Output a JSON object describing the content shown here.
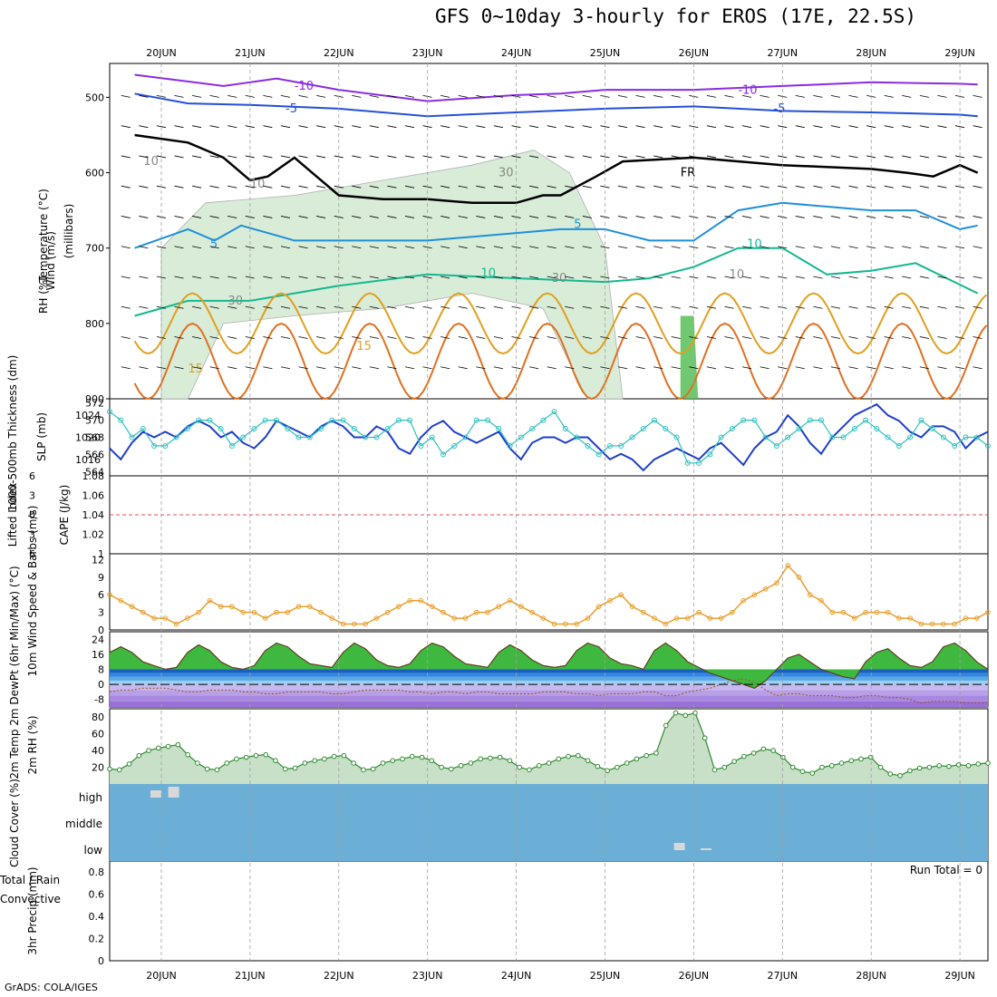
{
  "title": "GFS 0~10day 3-hourly for EROS (17E, 22.5S)",
  "footer": "GrADS: COLA/IGES",
  "days": [
    "20JUN",
    "21JUN",
    "22JUN",
    "23JUN",
    "24JUN",
    "25JUN",
    "26JUN",
    "27JUN",
    "28JUN",
    "29JUN"
  ],
  "colors": {
    "grid": "#a0a0a0",
    "ocean": "#6baed6",
    "rh_fill": "#4cbb4c",
    "temp_warm": "#3fb83f",
    "temp_cold": "#9b7fe0",
    "rh_line": "#2e8b2e",
    "wind_line": "#e8a030",
    "thick_line": "#30c0c0",
    "slp_line": "#1c3fc8"
  },
  "chart_data": [
    {
      "type": "contour",
      "panel": "upper-air",
      "ylabel_parts": [
        "Wind (m/s)",
        "Temperature (°C)",
        "RH (%)"
      ],
      "ylabel_units": "(millibars)",
      "y_ticks": [
        500,
        600,
        700,
        800,
        900
      ],
      "ylim": [
        455,
        900
      ],
      "contour_labels": [
        "-10",
        "-10",
        "-5",
        "-5",
        "10",
        "FR",
        "30",
        "5",
        "5",
        "10",
        "10",
        "30",
        "10",
        "15",
        "15",
        "30",
        "10"
      ],
      "isotherms": [
        {
          "name": "-10",
          "x": [
            -0.3,
            0.7,
            1.3,
            2.0,
            3.0,
            4.0,
            4.5,
            5.0,
            6.0,
            7.0,
            8.0,
            9.0,
            9.2
          ],
          "y": [
            470,
            485,
            475,
            490,
            505,
            497,
            495,
            490,
            490,
            485,
            480,
            482,
            483
          ]
        },
        {
          "name": "-5",
          "x": [
            -0.3,
            0.3,
            1.0,
            2.0,
            3.0,
            4.0,
            5.0,
            6.0,
            7.0,
            8.0,
            9.0,
            9.2
          ],
          "y": [
            495,
            508,
            510,
            515,
            525,
            520,
            515,
            512,
            518,
            520,
            523,
            525
          ]
        },
        {
          "name": "FR",
          "x": [
            -0.3,
            0.3,
            0.7,
            1.0,
            1.2,
            1.5,
            1.7,
            2.0,
            2.5,
            3.0,
            3.5,
            4.0,
            4.3,
            4.5,
            4.9,
            5.2,
            6.0,
            7.0,
            8.0,
            8.4,
            8.7,
            9.0,
            9.2
          ],
          "y": [
            550,
            560,
            580,
            610,
            605,
            580,
            600,
            630,
            635,
            635,
            640,
            640,
            630,
            630,
            605,
            585,
            580,
            590,
            595,
            600,
            605,
            590,
            600
          ]
        },
        {
          "name": "5",
          "x": [
            -0.3,
            0.3,
            0.6,
            0.9,
            1.2,
            1.5,
            2.0,
            3.0,
            4.0,
            4.5,
            5.0,
            5.5,
            6.0,
            6.5,
            7.0,
            8.0,
            8.5,
            9.0,
            9.2
          ],
          "y": [
            700,
            675,
            690,
            670,
            680,
            690,
            690,
            690,
            680,
            675,
            675,
            690,
            690,
            650,
            640,
            650,
            650,
            675,
            670
          ]
        },
        {
          "name": "10",
          "x": [
            -0.3,
            0.3,
            1.0,
            1.5,
            2.0,
            3.0,
            4.0,
            5.0,
            5.5,
            6.0,
            6.5,
            7.0,
            7.5,
            8.0,
            8.5,
            9.2
          ],
          "y": [
            790,
            770,
            770,
            760,
            750,
            735,
            740,
            745,
            740,
            725,
            700,
            700,
            735,
            730,
            720,
            760
          ]
        }
      ],
      "winter_shading": "rh_fill"
    },
    {
      "type": "line",
      "panel": "thickness-slp",
      "ylabel_left": "1000-500mb Thickness (dm)",
      "ylabel_right": "SLP (mb)",
      "y_left_ticks": [
        564,
        566,
        568,
        570,
        572
      ],
      "y_right_ticks": [
        1016,
        1020,
        1024
      ],
      "series": [
        {
          "name": "SLP (mb)",
          "axis": "right",
          "y": [
            1018,
            1016,
            1019,
            1021,
            1020,
            1021,
            1020,
            1022,
            1023,
            1022,
            1020,
            1021,
            1019,
            1018,
            1020,
            1023,
            1022,
            1021,
            1020,
            1022,
            1023,
            1022,
            1020,
            1020,
            1022,
            1021,
            1018,
            1017,
            1020,
            1022,
            1023,
            1021,
            1020,
            1019,
            1020,
            1021,
            1018,
            1016,
            1019,
            1020,
            1020,
            1019,
            1020,
            1020,
            1018,
            1016,
            1017,
            1016,
            1014,
            1016,
            1017,
            1018,
            1017,
            1016,
            1018,
            1019,
            1017,
            1015,
            1018,
            1020,
            1021,
            1024,
            1022,
            1019,
            1017,
            1020,
            1022,
            1024,
            1025,
            1026,
            1024,
            1023,
            1021,
            1020,
            1022,
            1022,
            1021,
            1018,
            1020,
            1021
          ]
        },
        {
          "name": "1000-500mb Thickness (dm)",
          "axis": "left",
          "y": [
            571,
            570,
            568,
            569,
            567,
            567,
            568,
            569,
            570,
            570,
            569,
            567,
            568,
            569,
            570,
            570,
            569,
            568,
            568,
            569,
            570,
            570,
            569,
            568,
            568,
            569,
            570,
            570,
            567,
            568,
            566,
            567,
            568,
            570,
            570,
            569,
            567,
            568,
            569,
            570,
            571,
            569,
            568,
            567,
            566,
            567,
            567,
            568,
            569,
            570,
            569,
            568,
            565,
            565,
            566,
            568,
            569,
            570,
            570,
            568,
            567,
            568,
            569,
            570,
            570,
            568,
            568,
            569,
            570,
            569,
            568,
            567,
            568,
            570,
            569,
            568,
            567,
            568,
            568,
            567
          ]
        }
      ],
      "x_range_days": [
        0,
        9.3
      ]
    },
    {
      "type": "line",
      "panel": "stability",
      "ylabel_left": "Lifted Index",
      "ylabel_right": "CAPE (J/kg)",
      "y_left_ticks": [
        -6,
        -3,
        0,
        3,
        6
      ],
      "y_right_ticks": [
        1.08,
        1.06,
        1.04,
        1.02,
        1
      ],
      "zero_line": 0
    },
    {
      "type": "line",
      "panel": "10m-wind",
      "ylabel": "10m Wind Speed & Barbs (m/s)",
      "y_ticks": [
        0,
        3,
        6,
        9,
        12
      ],
      "series": [
        {
          "name": "Speed",
          "y": [
            6,
            5,
            4,
            3,
            2,
            2,
            1,
            2,
            3,
            5,
            4,
            4,
            3,
            3,
            2,
            3,
            3,
            4,
            4,
            3,
            2,
            1,
            1,
            1,
            2,
            3,
            4,
            5,
            5,
            4,
            3,
            2,
            2,
            3,
            3,
            4,
            5,
            4,
            3,
            2,
            1,
            1,
            1,
            2,
            4,
            5,
            6,
            4,
            3,
            2,
            1,
            2,
            2,
            3,
            2,
            2,
            3,
            5,
            6,
            7,
            8,
            11,
            9,
            6,
            5,
            3,
            3,
            2,
            3,
            3,
            3,
            2,
            2,
            1,
            1,
            1,
            1,
            2,
            2,
            3
          ]
        }
      ]
    },
    {
      "type": "area",
      "panel": "2m-temp",
      "ylabel": "2m Temp 2m DewPt (6hr Min/Max) (°C)",
      "y_ticks": [
        -8,
        0,
        8,
        16,
        24
      ],
      "series": [
        {
          "name": "2m Temp",
          "y": [
            17,
            20,
            17,
            12,
            10,
            8,
            9,
            17,
            21,
            18,
            12,
            9,
            8,
            10,
            18,
            22,
            20,
            15,
            11,
            10,
            9,
            17,
            22,
            19,
            13,
            10,
            9,
            11,
            18,
            22,
            20,
            15,
            11,
            10,
            9,
            17,
            21,
            18,
            13,
            10,
            9,
            10,
            18,
            22,
            20,
            14,
            11,
            10,
            8,
            18,
            22,
            18,
            12,
            9,
            6,
            4,
            2,
            0,
            -2,
            2,
            8,
            14,
            16,
            12,
            8,
            6,
            4,
            3,
            12,
            17,
            19,
            14,
            10,
            9,
            12,
            20,
            22,
            18,
            12,
            8
          ]
        },
        {
          "name": "2m DewPt",
          "y": [
            -4,
            -3,
            -3,
            -2,
            -2,
            -2,
            -3,
            -4,
            -4,
            -3,
            -3,
            -3,
            -4,
            -4,
            -5,
            -5,
            -4,
            -4,
            -4,
            -4,
            -5,
            -5,
            -4,
            -3,
            -3,
            -3,
            -3,
            -4,
            -4,
            -5,
            -4,
            -4,
            -5,
            -4,
            -4,
            -5,
            -5,
            -5,
            -5,
            -4,
            -4,
            -4,
            -5,
            -5,
            -6,
            -5,
            -5,
            -5,
            -4,
            -4,
            -6,
            -6,
            -4,
            -3,
            -2,
            0,
            2,
            3,
            1,
            -3,
            -6,
            -5,
            -5,
            -6,
            -6,
            -6,
            -7,
            -7,
            -6,
            -6,
            -7,
            -7,
            -8,
            -10,
            -9,
            -9,
            -9,
            -10,
            -10,
            -10
          ]
        }
      ]
    },
    {
      "type": "area",
      "panel": "2m-rh",
      "ylabel": "2m RH (%)",
      "y_ticks": [
        20,
        40,
        60,
        80
      ],
      "series": [
        {
          "name": "2m RH",
          "y": [
            18,
            17,
            24,
            34,
            40,
            43,
            45,
            47,
            35,
            25,
            18,
            17,
            25,
            30,
            32,
            34,
            35,
            28,
            18,
            19,
            25,
            28,
            30,
            33,
            34,
            25,
            17,
            18,
            25,
            28,
            30,
            33,
            32,
            28,
            20,
            18,
            22,
            25,
            30,
            31,
            32,
            28,
            20,
            17,
            22,
            25,
            30,
            33,
            34,
            28,
            21,
            16,
            20,
            25,
            30,
            34,
            37,
            70,
            85,
            82,
            85,
            55,
            17,
            20,
            27,
            33,
            37,
            42,
            40,
            32,
            20,
            15,
            13,
            20,
            22,
            25,
            28,
            30,
            32,
            20,
            12,
            10,
            16,
            19,
            20,
            22,
            21,
            23,
            22,
            24,
            25
          ]
        }
      ]
    },
    {
      "type": "bar",
      "panel": "cloud-cover",
      "ylabel": "Cloud Cover (%)",
      "levels": [
        "high",
        "middle",
        "low"
      ],
      "series": [
        {
          "name": "high",
          "bars": [
            {
              "x": 0.0,
              "value": 5
            },
            {
              "x": 0.2,
              "value": 12
            },
            {
              "x": 0.0,
              "value": 8
            }
          ]
        },
        {
          "name": "low",
          "bars": [
            {
              "x": 5.9,
              "value": 8
            },
            {
              "x": 6.2,
              "value": 2
            }
          ]
        }
      ]
    },
    {
      "type": "bar",
      "panel": "precip",
      "ylabel": "3hr Precip (mm)",
      "legend": [
        "Total / Rain",
        "Convective"
      ],
      "y_ticks": [
        0,
        0.2,
        0.4,
        0.6,
        0.8
      ],
      "run_total": "Run Total = 0",
      "values": []
    }
  ]
}
